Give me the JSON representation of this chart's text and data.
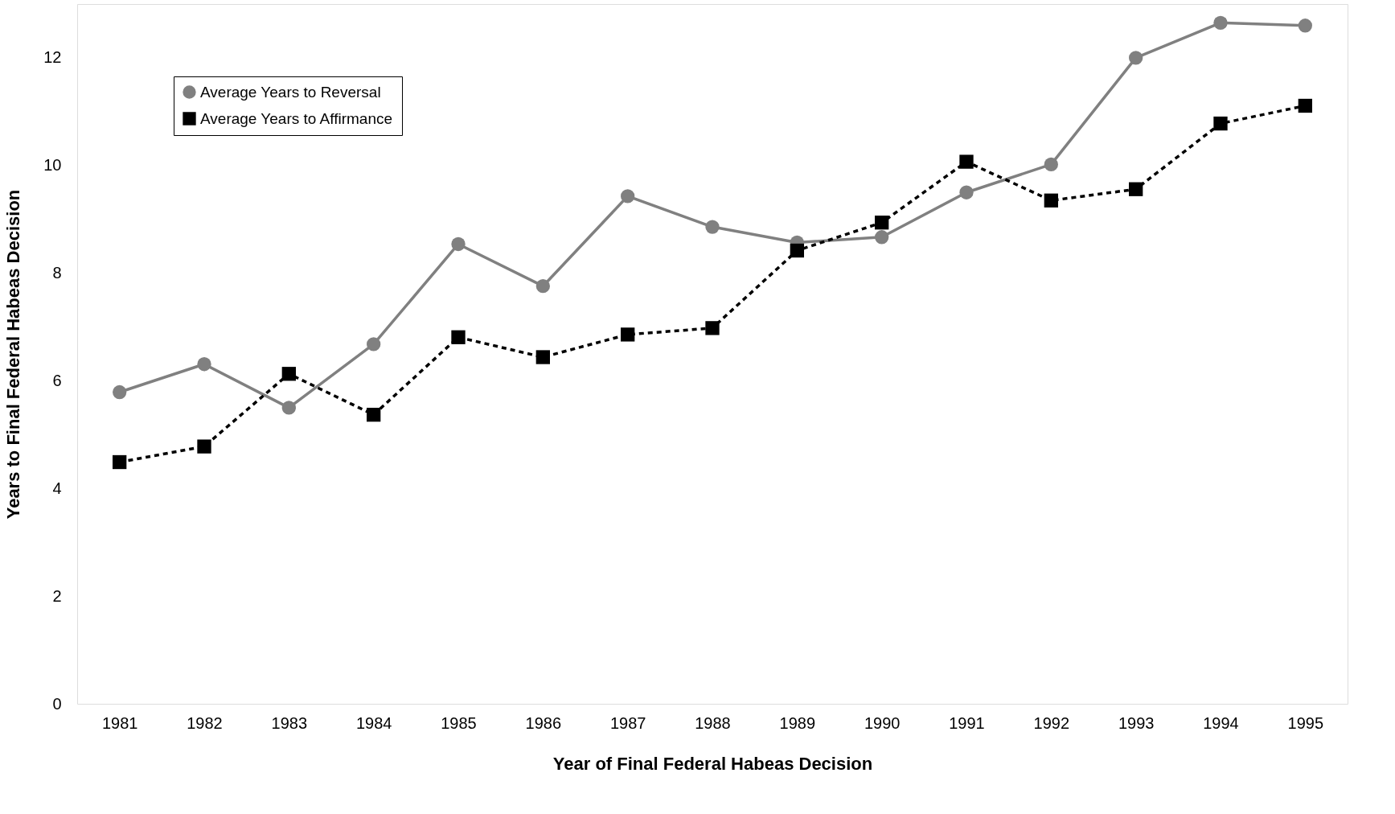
{
  "chart_data": {
    "type": "line",
    "xlabel": "Year of Final Federal Habeas Decision",
    "ylabel": "Years to Final Federal Habeas Decision",
    "categories": [
      "1981",
      "1982",
      "1983",
      "1984",
      "1985",
      "1986",
      "1987",
      "1988",
      "1989",
      "1990",
      "1991",
      "1992",
      "1993",
      "1994",
      "1995"
    ],
    "series": [
      {
        "name": "Average Years to Reversal",
        "color": "#808080",
        "marker": "circle",
        "line_style": "solid",
        "values": [
          5.79,
          6.31,
          5.5,
          6.68,
          8.54,
          7.76,
          9.43,
          8.86,
          8.57,
          8.67,
          9.5,
          10.02,
          12.0,
          12.65,
          12.6
        ]
      },
      {
        "name": "Average Years to Affirmance",
        "color": "#000000",
        "marker": "square",
        "line_style": "dashed",
        "values": [
          4.49,
          4.78,
          6.13,
          5.37,
          6.81,
          6.44,
          6.86,
          6.98,
          8.42,
          8.94,
          10.07,
          9.35,
          9.56,
          10.78,
          11.11
        ]
      }
    ],
    "ylim": [
      0,
      13
    ],
    "yticks": [
      0,
      2,
      4,
      6,
      8,
      10,
      12
    ],
    "grid": false,
    "legend": "top left"
  }
}
